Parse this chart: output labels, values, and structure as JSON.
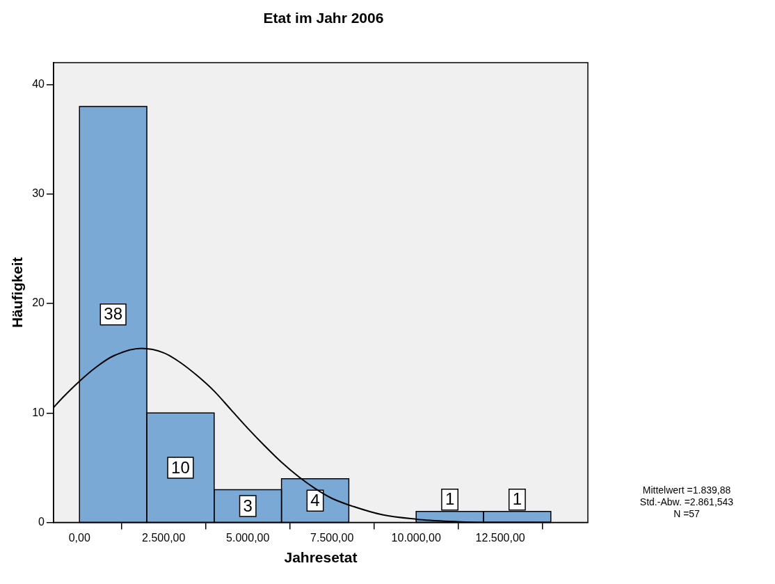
{
  "chart_data": {
    "type": "histogram",
    "title": "Etat im Jahr 2006",
    "xlabel": "Jahresetat",
    "ylabel": "Häufigkeit",
    "bins": [
      0,
      2000,
      4000,
      6000,
      8000,
      10000,
      12000,
      14000
    ],
    "values": [
      38,
      10,
      3,
      4,
      0,
      1,
      1
    ],
    "value_labels": [
      "38",
      "10",
      "3",
      "4",
      null,
      "1",
      "1"
    ],
    "color": "#7ba9d6",
    "series": [
      {
        "type": "line",
        "color": "#000000",
        "x": [
          -770,
          -500,
          0,
          500,
          1000,
          1840,
          2500,
          3000,
          3500,
          4000,
          4500,
          5000,
          5500,
          6000,
          6500,
          7000,
          7500,
          8000,
          9000,
          10000,
          11000,
          12000,
          13000,
          14000
        ],
        "values": [
          10.5,
          11.4,
          12.9,
          14.2,
          15.2,
          15.9,
          15.5,
          14.6,
          13.4,
          12.0,
          10.3,
          8.6,
          7.0,
          5.5,
          4.2,
          3.1,
          2.2,
          1.6,
          0.7,
          0.3,
          0.1,
          0,
          0,
          0
        ]
      }
    ],
    "xlim": [
      -770,
      15100
    ],
    "xticks": [
      {
        "value": 0,
        "label": "0,00"
      },
      {
        "value": 2500,
        "label": "2.500,00"
      },
      {
        "value": 5000,
        "label": "5.000,00"
      },
      {
        "value": 7500,
        "label": "7.500,00"
      },
      {
        "value": 10000,
        "label": "10.000,00"
      },
      {
        "value": 12500,
        "label": "12.500,00"
      }
    ],
    "ylim": [
      0,
      42
    ],
    "yticks": [
      0,
      10,
      20,
      30,
      40
    ],
    "grid": false,
    "legend": false,
    "marker": "none",
    "line_style": "solid",
    "annotations": [
      "Mittelwert =1.839,88",
      "Std.-Abw. =2.861,543",
      "N =57"
    ]
  }
}
